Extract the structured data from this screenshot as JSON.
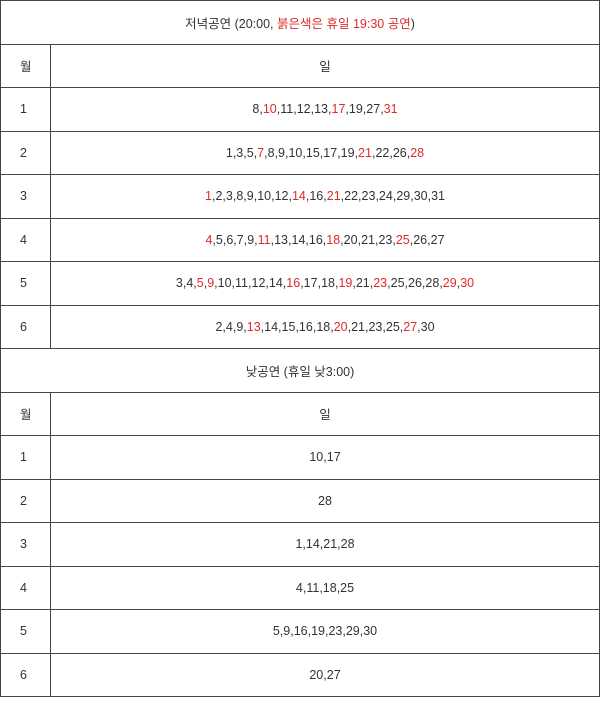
{
  "evening": {
    "title_prefix": "저녁공연 (20:00, ",
    "title_red": "붉은색은 휴일 19:30 공연",
    "title_suffix": ")",
    "col_month": "월",
    "col_days": "일",
    "rows": [
      {
        "month": "1",
        "days": [
          {
            "d": "8"
          },
          {
            "d": "10",
            "red": true
          },
          {
            "d": "11"
          },
          {
            "d": "12"
          },
          {
            "d": "13"
          },
          {
            "d": "17",
            "red": true
          },
          {
            "d": "19"
          },
          {
            "d": "27"
          },
          {
            "d": "31",
            "red": true
          }
        ]
      },
      {
        "month": "2",
        "days": [
          {
            "d": "1"
          },
          {
            "d": "3"
          },
          {
            "d": "5"
          },
          {
            "d": "7",
            "red": true
          },
          {
            "d": "8"
          },
          {
            "d": "9"
          },
          {
            "d": "10"
          },
          {
            "d": "15"
          },
          {
            "d": "17"
          },
          {
            "d": "19"
          },
          {
            "d": "21",
            "red": true
          },
          {
            "d": "22"
          },
          {
            "d": "26"
          },
          {
            "d": "28",
            "red": true
          }
        ]
      },
      {
        "month": "3",
        "days": [
          {
            "d": "1",
            "red": true
          },
          {
            "d": "2"
          },
          {
            "d": "3"
          },
          {
            "d": "8"
          },
          {
            "d": "9"
          },
          {
            "d": "10"
          },
          {
            "d": "12"
          },
          {
            "d": "14",
            "red": true
          },
          {
            "d": "16"
          },
          {
            "d": "21",
            "red": true
          },
          {
            "d": "22"
          },
          {
            "d": "23"
          },
          {
            "d": "24"
          },
          {
            "d": "29"
          },
          {
            "d": "30"
          },
          {
            "d": "31"
          }
        ]
      },
      {
        "month": "4",
        "days": [
          {
            "d": "4",
            "red": true
          },
          {
            "d": "5"
          },
          {
            "d": "6"
          },
          {
            "d": "7"
          },
          {
            "d": "9"
          },
          {
            "d": "11",
            "red": true
          },
          {
            "d": "13"
          },
          {
            "d": "14"
          },
          {
            "d": "16"
          },
          {
            "d": "18",
            "red": true
          },
          {
            "d": "20"
          },
          {
            "d": "21"
          },
          {
            "d": "23"
          },
          {
            "d": "25",
            "red": true
          },
          {
            "d": "26"
          },
          {
            "d": "27"
          }
        ]
      },
      {
        "month": "5",
        "days": [
          {
            "d": "3"
          },
          {
            "d": "4"
          },
          {
            "d": "5",
            "red": true
          },
          {
            "d": "9",
            "red": true
          },
          {
            "d": "10"
          },
          {
            "d": "11"
          },
          {
            "d": "12"
          },
          {
            "d": "14"
          },
          {
            "d": "16",
            "red": true
          },
          {
            "d": "17"
          },
          {
            "d": "18"
          },
          {
            "d": "19",
            "red": true
          },
          {
            "d": "21"
          },
          {
            "d": "23",
            "red": true
          },
          {
            "d": "25"
          },
          {
            "d": "26"
          },
          {
            "d": "28"
          },
          {
            "d": "29",
            "red": true
          },
          {
            "d": "30",
            "red": true
          }
        ]
      },
      {
        "month": "6",
        "days": [
          {
            "d": "2"
          },
          {
            "d": "4"
          },
          {
            "d": "9"
          },
          {
            "d": "13",
            "red": true
          },
          {
            "d": "14"
          },
          {
            "d": "15"
          },
          {
            "d": "16"
          },
          {
            "d": "18"
          },
          {
            "d": "20",
            "red": true
          },
          {
            "d": "21"
          },
          {
            "d": "23"
          },
          {
            "d": "25"
          },
          {
            "d": "27",
            "red": true
          },
          {
            "d": "30"
          }
        ]
      }
    ]
  },
  "matinee": {
    "title": "낮공연 (휴일 낮3:00)",
    "col_month": "월",
    "col_days": "일",
    "rows": [
      {
        "month": "1",
        "days": "10,17"
      },
      {
        "month": "2",
        "days": "28"
      },
      {
        "month": "3",
        "days": "1,14,21,28"
      },
      {
        "month": "4",
        "days": "4,11,18,25"
      },
      {
        "month": "5",
        "days": "5,9,16,19,23,29,30"
      },
      {
        "month": "6",
        "days": "20,27"
      }
    ]
  }
}
